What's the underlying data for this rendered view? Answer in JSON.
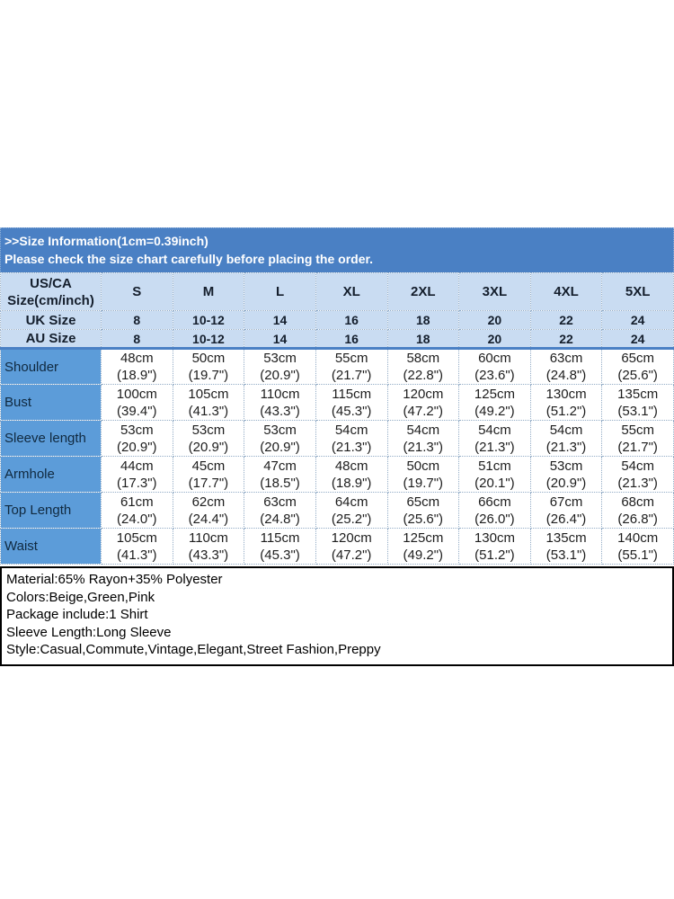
{
  "title": ">>Size Information(1cm=0.39inch)",
  "subtitle": "Please check the size chart carefully before placing the order.",
  "colors": {
    "title_band_bg": "#4a80c4",
    "header_row_bg": "#c9dcf2",
    "label_column_bg": "#5c9cd9",
    "title_text": "#ffffff",
    "grid_dotted_border": "#93acc6",
    "separator_line": "#4a80c4",
    "info_box_border": "#000000"
  },
  "table": {
    "corner_header": [
      "US/CA",
      "Size(cm/inch)"
    ],
    "size_headers": [
      "S",
      "M",
      "L",
      "XL",
      "2XL",
      "3XL",
      "4XL",
      "5XL"
    ],
    "uk_row": {
      "label": "UK Size",
      "values": [
        "8",
        "10-12",
        "14",
        "16",
        "18",
        "20",
        "22",
        "24"
      ]
    },
    "au_row": {
      "label": "AU Size",
      "values": [
        "8",
        "10-12",
        "14",
        "16",
        "18",
        "20",
        "22",
        "24"
      ]
    },
    "measurement_rows": [
      {
        "label": "Shoulder",
        "cm": [
          "48cm",
          "50cm",
          "53cm",
          "55cm",
          "58cm",
          "60cm",
          "63cm",
          "65cm"
        ],
        "inch": [
          "(18.9\")",
          "(19.7\")",
          "(20.9\")",
          "(21.7\")",
          "(22.8\")",
          "(23.6\")",
          "(24.8\")",
          "(25.6\")"
        ]
      },
      {
        "label": "Bust",
        "cm": [
          "100cm",
          "105cm",
          "110cm",
          "115cm",
          "120cm",
          "125cm",
          "130cm",
          "135cm"
        ],
        "inch": [
          "(39.4\")",
          "(41.3\")",
          "(43.3\")",
          "(45.3\")",
          "(47.2\")",
          "(49.2\")",
          "(51.2\")",
          "(53.1\")"
        ]
      },
      {
        "label": "Sleeve length",
        "cm": [
          "53cm",
          "53cm",
          "53cm",
          "54cm",
          "54cm",
          "54cm",
          "54cm",
          "55cm"
        ],
        "inch": [
          "(20.9\")",
          "(20.9\")",
          "(20.9\")",
          "(21.3\")",
          "(21.3\")",
          "(21.3\")",
          "(21.3\")",
          "(21.7\")"
        ]
      },
      {
        "label": "Armhole",
        "cm": [
          "44cm",
          "45cm",
          "47cm",
          "48cm",
          "50cm",
          "51cm",
          "53cm",
          "54cm"
        ],
        "inch": [
          "(17.3\")",
          "(17.7\")",
          "(18.5\")",
          "(18.9\")",
          "(19.7\")",
          "(20.1\")",
          "(20.9\")",
          "(21.3\")"
        ]
      },
      {
        "label": "Top Length",
        "cm": [
          "61cm",
          "62cm",
          "63cm",
          "64cm",
          "65cm",
          "66cm",
          "67cm",
          "68cm"
        ],
        "inch": [
          "(24.0\")",
          "(24.4\")",
          "(24.8\")",
          "(25.2\")",
          "(25.6\")",
          "(26.0\")",
          "(26.4\")",
          "(26.8\")"
        ]
      },
      {
        "label": "Waist",
        "cm": [
          "105cm",
          "110cm",
          "115cm",
          "120cm",
          "125cm",
          "130cm",
          "135cm",
          "140cm"
        ],
        "inch": [
          "(41.3\")",
          "(43.3\")",
          "(45.3\")",
          "(47.2\")",
          "(49.2\")",
          "(51.2\")",
          "(53.1\")",
          "(55.1\")"
        ]
      }
    ]
  },
  "info_box": {
    "lines": [
      "Material:65% Rayon+35% Polyester",
      "Colors:Beige,Green,Pink",
      "Package include:1 Shirt",
      "Sleeve Length:Long Sleeve",
      "Style:Casual,Commute,Vintage,Elegant,Street Fashion,Preppy"
    ]
  }
}
